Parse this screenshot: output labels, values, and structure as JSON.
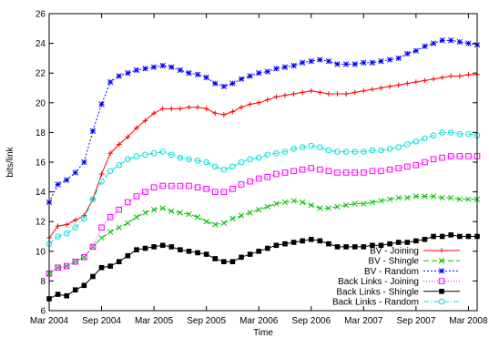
{
  "chart_data": {
    "type": "line",
    "xlabel": "Time",
    "ylabel": "bits/link",
    "ylim": [
      6,
      26
    ],
    "yticks": [
      6,
      8,
      10,
      12,
      14,
      16,
      18,
      20,
      22,
      24,
      26
    ],
    "xlim": [
      0,
      49
    ],
    "xticks": [
      {
        "value": 0,
        "label": "Mar 2004"
      },
      {
        "value": 6,
        "label": "Sep 2004"
      },
      {
        "value": 12,
        "label": "Mar 2005"
      },
      {
        "value": 18,
        "label": "Sep 2005"
      },
      {
        "value": 24,
        "label": "Mar 2006"
      },
      {
        "value": 30,
        "label": "Sep 2006"
      },
      {
        "value": 36,
        "label": "Mar 2007"
      },
      {
        "value": 42,
        "label": "Sep 2007"
      },
      {
        "value": 48,
        "label": "Mar 2008"
      }
    ],
    "x": [
      0,
      1,
      2,
      3,
      4,
      5,
      6,
      7,
      8,
      9,
      10,
      11,
      12,
      13,
      14,
      15,
      16,
      17,
      18,
      19,
      20,
      21,
      22,
      23,
      24,
      25,
      26,
      27,
      28,
      29,
      30,
      31,
      32,
      33,
      34,
      35,
      36,
      37,
      38,
      39,
      40,
      41,
      42,
      43,
      44,
      45,
      46,
      47,
      48,
      49
    ],
    "legend_position": "bottom-right",
    "grid": false,
    "series": [
      {
        "name": "BV - Joining",
        "color": "#ff0000",
        "marker": "plus",
        "dash": "",
        "values": [
          10.9,
          11.7,
          11.8,
          12.1,
          12.4,
          13.5,
          15.2,
          16.6,
          17.2,
          17.7,
          18.3,
          18.8,
          19.3,
          19.6,
          19.6,
          19.6,
          19.7,
          19.7,
          19.6,
          19.3,
          19.2,
          19.4,
          19.7,
          19.9,
          20.0,
          20.2,
          20.4,
          20.5,
          20.6,
          20.7,
          20.8,
          20.7,
          20.6,
          20.6,
          20.6,
          20.7,
          20.8,
          20.9,
          21.0,
          21.1,
          21.2,
          21.3,
          21.4,
          21.5,
          21.6,
          21.7,
          21.8,
          21.8,
          21.9,
          21.9
        ]
      },
      {
        "name": "BV - Shingle",
        "color": "#00c000",
        "marker": "cross",
        "dash": "6,3",
        "values": [
          8.5,
          8.9,
          9.0,
          9.3,
          9.6,
          10.3,
          10.9,
          11.3,
          11.6,
          11.9,
          12.3,
          12.6,
          12.8,
          12.9,
          12.7,
          12.6,
          12.5,
          12.3,
          12.0,
          11.8,
          11.9,
          12.2,
          12.4,
          12.6,
          12.8,
          13.0,
          13.2,
          13.3,
          13.4,
          13.3,
          13.1,
          12.9,
          12.9,
          13.0,
          13.1,
          13.2,
          13.2,
          13.3,
          13.4,
          13.5,
          13.6,
          13.6,
          13.7,
          13.7,
          13.7,
          13.6,
          13.6,
          13.5,
          13.5,
          13.5
        ]
      },
      {
        "name": "BV - Random",
        "color": "#0000ff",
        "marker": "star",
        "dash": "2,2",
        "values": [
          13.3,
          14.5,
          14.8,
          15.3,
          16.0,
          18.1,
          19.9,
          21.4,
          21.8,
          22.0,
          22.2,
          22.3,
          22.4,
          22.5,
          22.4,
          22.2,
          22.0,
          21.9,
          21.7,
          21.3,
          21.1,
          21.3,
          21.6,
          21.8,
          22.0,
          22.1,
          22.3,
          22.4,
          22.5,
          22.7,
          22.8,
          22.9,
          22.8,
          22.6,
          22.6,
          22.6,
          22.7,
          22.7,
          22.8,
          22.9,
          23.0,
          23.3,
          23.5,
          23.8,
          24.0,
          24.2,
          24.2,
          24.1,
          24.0,
          23.9
        ]
      },
      {
        "name": "Back Links - Joining",
        "color": "#ff00ff",
        "marker": "square-open",
        "dash": "1,2",
        "values": [
          8.5,
          8.9,
          9.0,
          9.3,
          9.6,
          10.3,
          11.6,
          12.3,
          12.8,
          13.3,
          13.7,
          14.0,
          14.3,
          14.4,
          14.4,
          14.4,
          14.4,
          14.3,
          14.2,
          14.0,
          14.0,
          14.2,
          14.5,
          14.7,
          14.9,
          15.0,
          15.2,
          15.3,
          15.4,
          15.5,
          15.6,
          15.5,
          15.4,
          15.3,
          15.3,
          15.3,
          15.3,
          15.4,
          15.4,
          15.5,
          15.6,
          15.7,
          15.8,
          16.0,
          16.2,
          16.3,
          16.4,
          16.4,
          16.4,
          16.4
        ]
      },
      {
        "name": "Back Links - Shingle",
        "color": "#000000",
        "marker": "square-filled",
        "dash": "",
        "values": [
          6.8,
          7.1,
          7.0,
          7.4,
          7.7,
          8.3,
          8.9,
          9.0,
          9.3,
          9.7,
          10.1,
          10.2,
          10.3,
          10.4,
          10.3,
          10.1,
          10.0,
          9.9,
          9.8,
          9.5,
          9.3,
          9.3,
          9.6,
          9.8,
          10.0,
          10.2,
          10.4,
          10.5,
          10.6,
          10.7,
          10.8,
          10.7,
          10.5,
          10.3,
          10.3,
          10.3,
          10.3,
          10.4,
          10.4,
          10.5,
          10.6,
          10.6,
          10.7,
          10.8,
          11.0,
          11.0,
          11.1,
          11.0,
          11.0,
          11.0
        ]
      },
      {
        "name": "Back Links - Random",
        "color": "#00e0e0",
        "marker": "circle-open",
        "dash": "6,2,1,2",
        "values": [
          10.5,
          11.0,
          11.2,
          11.6,
          12.2,
          13.5,
          14.7,
          15.4,
          15.8,
          16.2,
          16.4,
          16.5,
          16.6,
          16.7,
          16.5,
          16.3,
          16.2,
          16.1,
          16.0,
          15.7,
          15.5,
          15.7,
          16.0,
          16.2,
          16.3,
          16.5,
          16.6,
          16.7,
          16.9,
          17.0,
          17.1,
          17.0,
          16.8,
          16.7,
          16.7,
          16.7,
          16.7,
          16.8,
          16.8,
          16.9,
          17.0,
          17.2,
          17.4,
          17.6,
          17.8,
          18.0,
          18.0,
          17.9,
          17.9,
          17.8
        ]
      }
    ]
  }
}
